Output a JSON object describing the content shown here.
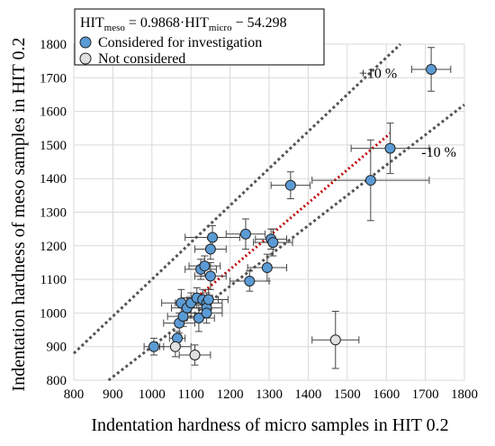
{
  "chart_data": {
    "type": "scatter",
    "xlabel": "Indentation hardness of micro samples in HIT 0.2",
    "ylabel": "Indentation hardness of meso samples in HIT 0.2",
    "xlim": [
      800,
      1800
    ],
    "ylim": [
      800,
      1800
    ],
    "x_ticks": [
      "800",
      "900",
      "1000",
      "1100",
      "1200",
      "1300",
      "1400",
      "1500",
      "1600",
      "1700",
      "1800"
    ],
    "y_ticks": [
      "800",
      "900",
      "1000",
      "1100",
      "1200",
      "1300",
      "1400",
      "1500",
      "1600",
      "1700",
      "1800"
    ],
    "grid": true,
    "legend_position": "top-left",
    "equation": {
      "prefix": "HIT",
      "sub1": "meso",
      "middle": " = 0.9868·HIT",
      "sub2": "micro",
      "suffix": " − 54.298"
    },
    "fit": {
      "slope": 0.9868,
      "intercept": -54.298,
      "x_range": [
        1090,
        1610
      ]
    },
    "bound_labels": {
      "upper": "+10 %",
      "lower": "-10 %"
    },
    "bounds": {
      "upper_factor": 1.1,
      "lower_factor": 0.9
    },
    "series": [
      {
        "name": "Considered for investigation",
        "color": "#5b9bd5",
        "points": [
          {
            "x": 1005,
            "y": 900,
            "xerr": 25,
            "yerr": 25
          },
          {
            "x": 1065,
            "y": 925,
            "xerr": 20,
            "yerr": 20
          },
          {
            "x": 1070,
            "y": 970,
            "xerr": 40,
            "yerr": 30
          },
          {
            "x": 1080,
            "y": 990,
            "xerr": 40,
            "yerr": 30
          },
          {
            "x": 1075,
            "y": 1030,
            "xerr": 50,
            "yerr": 40
          },
          {
            "x": 1090,
            "y": 1015,
            "xerr": 40,
            "yerr": 30
          },
          {
            "x": 1100,
            "y": 1030,
            "xerr": 40,
            "yerr": 30
          },
          {
            "x": 1115,
            "y": 1045,
            "xerr": 40,
            "yerr": 30
          },
          {
            "x": 1120,
            "y": 985,
            "xerr": 40,
            "yerr": 40
          },
          {
            "x": 1130,
            "y": 1040,
            "xerr": 40,
            "yerr": 30
          },
          {
            "x": 1140,
            "y": 1030,
            "xerr": 40,
            "yerr": 30
          },
          {
            "x": 1140,
            "y": 1015,
            "xerr": 40,
            "yerr": 30
          },
          {
            "x": 1140,
            "y": 1000,
            "xerr": 40,
            "yerr": 30
          },
          {
            "x": 1145,
            "y": 1040,
            "xerr": 50,
            "yerr": 30
          },
          {
            "x": 1125,
            "y": 1130,
            "xerr": 40,
            "yerr": 30
          },
          {
            "x": 1135,
            "y": 1140,
            "xerr": 40,
            "yerr": 30
          },
          {
            "x": 1150,
            "y": 1110,
            "xerr": 40,
            "yerr": 40
          },
          {
            "x": 1150,
            "y": 1190,
            "xerr": 40,
            "yerr": 30
          },
          {
            "x": 1155,
            "y": 1225,
            "xerr": 70,
            "yerr": 35
          },
          {
            "x": 1240,
            "y": 1235,
            "xerr": 50,
            "yerr": 45
          },
          {
            "x": 1250,
            "y": 1095,
            "xerr": 50,
            "yerr": 30
          },
          {
            "x": 1295,
            "y": 1135,
            "xerr": 50,
            "yerr": 40
          },
          {
            "x": 1305,
            "y": 1220,
            "xerr": 40,
            "yerr": 30
          },
          {
            "x": 1310,
            "y": 1210,
            "xerr": 50,
            "yerr": 40
          },
          {
            "x": 1355,
            "y": 1380,
            "xerr": 50,
            "yerr": 40
          },
          {
            "x": 1560,
            "y": 1395,
            "xerr": 150,
            "yerr": 120
          },
          {
            "x": 1610,
            "y": 1490,
            "xerr": 100,
            "yerr": 75
          },
          {
            "x": 1715,
            "y": 1725,
            "xerr": 50,
            "yerr": 65
          }
        ]
      },
      {
        "name": "Not considered",
        "color": "#e0e0e0",
        "points": [
          {
            "x": 1060,
            "y": 900,
            "xerr": 40,
            "yerr": 30
          },
          {
            "x": 1110,
            "y": 875,
            "xerr": 40,
            "yerr": 30
          },
          {
            "x": 1470,
            "y": 920,
            "xerr": 60,
            "yerr": 85
          }
        ]
      }
    ]
  }
}
